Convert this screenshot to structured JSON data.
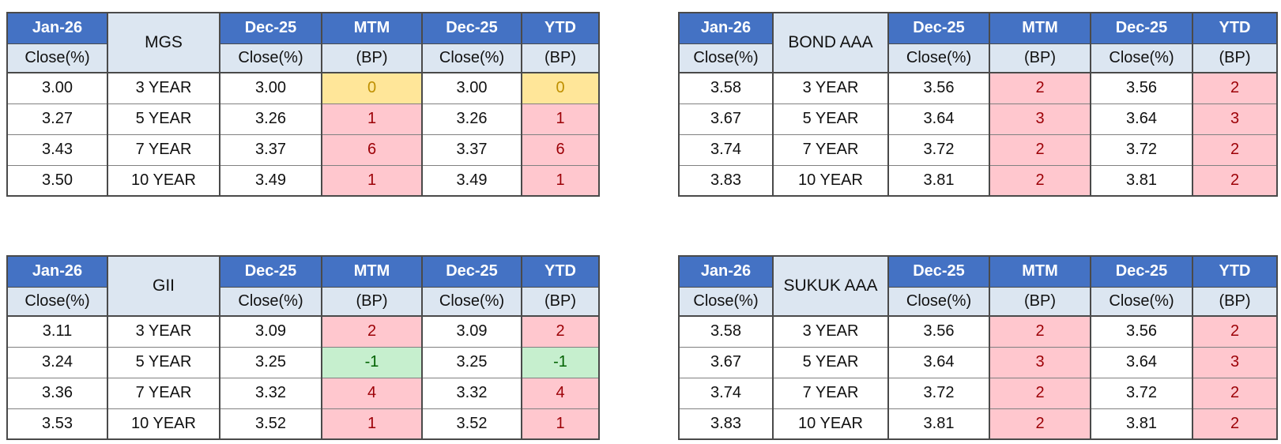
{
  "page": {
    "background": "#FFFFFF",
    "description": "Four bond yield comparison tables (MGS, BOND AAA, GII, SUKUK AAA) showing Jan-26 closes vs Dec-25 closes with MTM and YTD basis-point changes"
  },
  "colors": {
    "header_bg": "#4472C4",
    "header_text": "#FFFFFF",
    "subheader_bg": "#DCE6F1",
    "border_dark": "#4A4A4A",
    "border_light": "#808080",
    "cell_text": "#111111",
    "neutral_bg": "#FFE699",
    "neutral_text": "#BF8F00",
    "bad_bg": "#FFC7CE",
    "bad_text": "#9C0006",
    "good_bg": "#C6EFCE",
    "good_text": "#006100"
  },
  "header_labels": {
    "current_period": "Jan-26",
    "prior_period": "Dec-25",
    "close": "Close(%)",
    "mtm": "MTM",
    "ytd": "YTD",
    "bp": "(BP)"
  },
  "chart_data": [
    {
      "type": "table",
      "title": "MGS",
      "position": "top-left",
      "column_headers": [
        "Jan-26 Close(%)",
        "MGS",
        "Dec-25 Close(%)",
        "MTM (BP)",
        "Dec-25 Close(%)",
        "YTD (BP)"
      ],
      "rows": [
        {
          "current_close": "3.00",
          "tenor": "3 YEAR",
          "prior_close_mtm": "3.00",
          "mtm_bp": "0",
          "mtm_state": "neutral",
          "prior_close_ytd": "3.00",
          "ytd_bp": "0",
          "ytd_state": "neutral"
        },
        {
          "current_close": "3.27",
          "tenor": "5 YEAR",
          "prior_close_mtm": "3.26",
          "mtm_bp": "1",
          "mtm_state": "bad",
          "prior_close_ytd": "3.26",
          "ytd_bp": "1",
          "ytd_state": "bad"
        },
        {
          "current_close": "3.43",
          "tenor": "7 YEAR",
          "prior_close_mtm": "3.37",
          "mtm_bp": "6",
          "mtm_state": "bad",
          "prior_close_ytd": "3.37",
          "ytd_bp": "6",
          "ytd_state": "bad"
        },
        {
          "current_close": "3.50",
          "tenor": "10 YEAR",
          "prior_close_mtm": "3.49",
          "mtm_bp": "1",
          "mtm_state": "bad",
          "prior_close_ytd": "3.49",
          "ytd_bp": "1",
          "ytd_state": "bad"
        }
      ]
    },
    {
      "type": "table",
      "title": "BOND AAA",
      "position": "top-right",
      "column_headers": [
        "Jan-26 Close(%)",
        "BOND AAA",
        "Dec-25 Close(%)",
        "MTM (BP)",
        "Dec-25 Close(%)",
        "YTD (BP)"
      ],
      "rows": [
        {
          "current_close": "3.58",
          "tenor": "3 YEAR",
          "prior_close_mtm": "3.56",
          "mtm_bp": "2",
          "mtm_state": "bad",
          "prior_close_ytd": "3.56",
          "ytd_bp": "2",
          "ytd_state": "bad"
        },
        {
          "current_close": "3.67",
          "tenor": "5 YEAR",
          "prior_close_mtm": "3.64",
          "mtm_bp": "3",
          "mtm_state": "bad",
          "prior_close_ytd": "3.64",
          "ytd_bp": "3",
          "ytd_state": "bad"
        },
        {
          "current_close": "3.74",
          "tenor": "7 YEAR",
          "prior_close_mtm": "3.72",
          "mtm_bp": "2",
          "mtm_state": "bad",
          "prior_close_ytd": "3.72",
          "ytd_bp": "2",
          "ytd_state": "bad"
        },
        {
          "current_close": "3.83",
          "tenor": "10 YEAR",
          "prior_close_mtm": "3.81",
          "mtm_bp": "2",
          "mtm_state": "bad",
          "prior_close_ytd": "3.81",
          "ytd_bp": "2",
          "ytd_state": "bad"
        }
      ]
    },
    {
      "type": "table",
      "title": "GII",
      "position": "bottom-left",
      "column_headers": [
        "Jan-26 Close(%)",
        "GII",
        "Dec-25 Close(%)",
        "MTM (BP)",
        "Dec-25 Close(%)",
        "YTD (BP)"
      ],
      "rows": [
        {
          "current_close": "3.11",
          "tenor": "3 YEAR",
          "prior_close_mtm": "3.09",
          "mtm_bp": "2",
          "mtm_state": "bad",
          "prior_close_ytd": "3.09",
          "ytd_bp": "2",
          "ytd_state": "bad"
        },
        {
          "current_close": "3.24",
          "tenor": "5 YEAR",
          "prior_close_mtm": "3.25",
          "mtm_bp": "-1",
          "mtm_state": "good",
          "prior_close_ytd": "3.25",
          "ytd_bp": "-1",
          "ytd_state": "good"
        },
        {
          "current_close": "3.36",
          "tenor": "7 YEAR",
          "prior_close_mtm": "3.32",
          "mtm_bp": "4",
          "mtm_state": "bad",
          "prior_close_ytd": "3.32",
          "ytd_bp": "4",
          "ytd_state": "bad"
        },
        {
          "current_close": "3.53",
          "tenor": "10 YEAR",
          "prior_close_mtm": "3.52",
          "mtm_bp": "1",
          "mtm_state": "bad",
          "prior_close_ytd": "3.52",
          "ytd_bp": "1",
          "ytd_state": "bad"
        }
      ]
    },
    {
      "type": "table",
      "title": "SUKUK AAA",
      "position": "bottom-right",
      "column_headers": [
        "Jan-26 Close(%)",
        "SUKUK AAA",
        "Dec-25 Close(%)",
        "MTM (BP)",
        "Dec-25 Close(%)",
        "YTD (BP)"
      ],
      "rows": [
        {
          "current_close": "3.58",
          "tenor": "3 YEAR",
          "prior_close_mtm": "3.56",
          "mtm_bp": "2",
          "mtm_state": "bad",
          "prior_close_ytd": "3.56",
          "ytd_bp": "2",
          "ytd_state": "bad"
        },
        {
          "current_close": "3.67",
          "tenor": "5 YEAR",
          "prior_close_mtm": "3.64",
          "mtm_bp": "3",
          "mtm_state": "bad",
          "prior_close_ytd": "3.64",
          "ytd_bp": "3",
          "ytd_state": "bad"
        },
        {
          "current_close": "3.74",
          "tenor": "7 YEAR",
          "prior_close_mtm": "3.72",
          "mtm_bp": "2",
          "mtm_state": "bad",
          "prior_close_ytd": "3.72",
          "ytd_bp": "2",
          "ytd_state": "bad"
        },
        {
          "current_close": "3.83",
          "tenor": "10 YEAR",
          "prior_close_mtm": "3.81",
          "mtm_bp": "2",
          "mtm_state": "bad",
          "prior_close_ytd": "3.81",
          "ytd_bp": "2",
          "ytd_state": "bad"
        }
      ]
    }
  ]
}
